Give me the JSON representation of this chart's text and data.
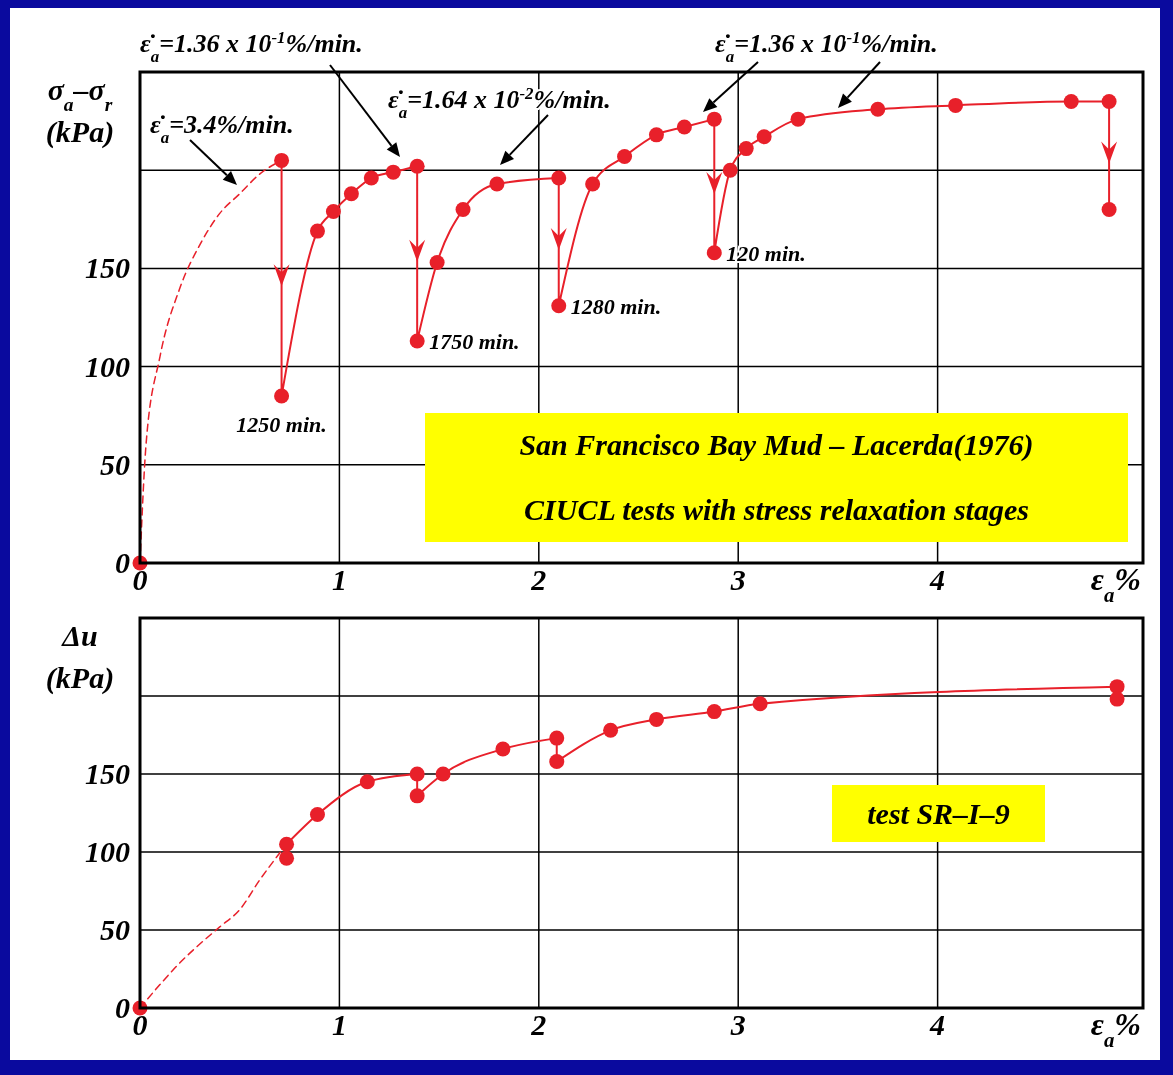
{
  "chart_data": [
    {
      "type": "line",
      "xlabel": "ε$_{a}$%",
      "ylabel": "σ$_{a}$–σ$_{r}$\n(kPa)",
      "xlim": [
        0,
        5.03
      ],
      "ylim": [
        0,
        250
      ],
      "xticks": [
        0,
        1,
        2,
        3,
        4
      ],
      "yticks": [
        0,
        50,
        100,
        150,
        {
          "value": 200,
          "label": null
        }
      ],
      "grid": true,
      "series": [
        {
          "color": "#e8202a",
          "line_style": "dashed",
          "marker": "none",
          "x": [
            0,
            0.03,
            0.1,
            0.2,
            0.3,
            0.4,
            0.5,
            0.6,
            0.71
          ],
          "values": [
            0,
            60,
            105,
            140,
            162,
            178,
            188,
            198,
            205
          ]
        },
        {
          "type": "scatter",
          "color": "#e8202a",
          "marker": "circle",
          "x": [
            0
          ],
          "values": [
            0
          ]
        },
        {
          "color": "#e8202a",
          "line_style": "solid",
          "marker": "circle",
          "x": [
            0.71,
            0.71,
            0.89,
            0.97,
            1.06,
            1.16,
            1.27,
            1.39,
            1.39,
            1.49,
            1.62,
            1.79,
            2.1,
            2.1,
            2.27,
            2.43,
            2.59,
            2.73,
            2.88,
            2.88,
            2.96,
            3.04,
            3.13,
            3.3,
            3.7,
            4.09,
            4.67,
            4.86,
            4.86
          ],
          "values": [
            205,
            85,
            169,
            179,
            188,
            196,
            199,
            202,
            113,
            153,
            180,
            193,
            196,
            131,
            193,
            207,
            218,
            222,
            226,
            158,
            200,
            211,
            217,
            226,
            231,
            233,
            235,
            235,
            180
          ]
        }
      ],
      "annotations": [
        "ε̇$_{a}$=3.4%/min.",
        "ε̇$_{a}$=1.36 x 10$^{-1}$%/min.",
        "ε̇$_{a}$=1.64 x 10$^{-2}$%/min.",
        "ε̇$_{a}$=1.36 x 10$^{-1}$%/min.",
        {
          "text": "1250 min.",
          "x": 0.71,
          "y": 85
        },
        {
          "text": "1750 min.",
          "x": 1.39,
          "y": 113
        },
        {
          "text": "1280 min.",
          "x": 2.1,
          "y": 131
        },
        {
          "text": "120 min.",
          "x": 2.88,
          "y": 158
        },
        "San Francisco Bay Mud – Lacerda(1976)",
        "CIUCL tests with stress relaxation stages"
      ]
    },
    {
      "type": "line",
      "xlabel": "ε$_{a}$%",
      "ylabel": "Δu\n(kPa)",
      "xlim": [
        0,
        5.03
      ],
      "ylim": [
        0,
        250
      ],
      "xticks": [
        0,
        1,
        2,
        3,
        4
      ],
      "yticks": [
        0,
        50,
        100,
        150,
        {
          "value": 200,
          "label": null
        }
      ],
      "grid": true,
      "series": [
        {
          "color": "#e8202a",
          "line_style": "dashed",
          "marker": "none",
          "x": [
            0,
            0.1,
            0.2,
            0.3,
            0.4,
            0.5,
            0.6,
            0.735
          ],
          "values": [
            0,
            15,
            29,
            41,
            52,
            63,
            82,
            105
          ]
        },
        {
          "type": "scatter",
          "color": "#e8202a",
          "marker": "circle",
          "x": [
            0
          ],
          "values": [
            0
          ]
        },
        {
          "color": "#e8202a",
          "line_style": "solid",
          "marker": "circle",
          "x": [
            0.735,
            0.735,
            0.89,
            1.14,
            1.39,
            1.39,
            1.52,
            1.82,
            2.09,
            2.09,
            2.36,
            2.59,
            2.88,
            3.11,
            4.9,
            4.9
          ],
          "values": [
            96,
            105,
            124,
            145,
            150,
            136,
            150,
            166,
            173,
            158,
            178,
            185,
            190,
            195,
            206,
            198
          ]
        }
      ],
      "annotations": [
        "test SR–I–9"
      ]
    }
  ]
}
